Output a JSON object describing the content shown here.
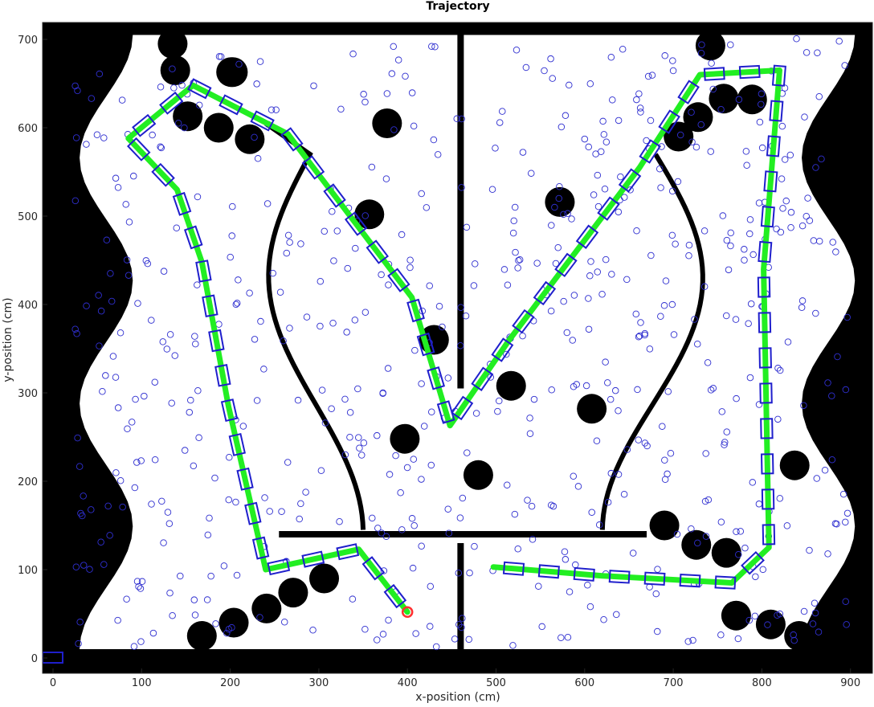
{
  "chart_data": {
    "type": "scatter",
    "title": "Trajectory",
    "xlabel": "x-position (cm)",
    "ylabel": "y-position (cm)",
    "xlim": [
      -12,
      925
    ],
    "ylim": [
      -10,
      715
    ],
    "xticks": [
      0,
      100,
      200,
      300,
      400,
      500,
      600,
      700,
      800,
      900
    ],
    "yticks": [
      0,
      100,
      200,
      300,
      400,
      500,
      600,
      700
    ],
    "grid": false,
    "colors": {
      "obstacle": "#000000",
      "trajectory": "#22ee22",
      "pose_box": "#1f1fcc",
      "particles": "#2f2fd0",
      "start_marker": "#ff3030"
    },
    "walls": [
      {
        "name": "center-vertical-upper",
        "points": [
          [
            460,
            705
          ],
          [
            460,
            305
          ]
        ]
      },
      {
        "name": "center-vertical-lower",
        "points": [
          [
            460,
            130
          ],
          [
            460,
            10
          ]
        ]
      },
      {
        "name": "center-horizontal",
        "points": [
          [
            255,
            140
          ],
          [
            670,
            140
          ]
        ]
      }
    ],
    "obstacles": [
      [
        135,
        695
      ],
      [
        138,
        665
      ],
      [
        203,
        663
      ],
      [
        152,
        613
      ],
      [
        187,
        600
      ],
      [
        222,
        587
      ],
      [
        377,
        605
      ],
      [
        357,
        502
      ],
      [
        430,
        360
      ],
      [
        397,
        248
      ],
      [
        480,
        207
      ],
      [
        517,
        308
      ],
      [
        572,
        516
      ],
      [
        608,
        282
      ],
      [
        706,
        590
      ],
      [
        728,
        612
      ],
      [
        757,
        633
      ],
      [
        789,
        632
      ],
      [
        742,
        693
      ],
      [
        837,
        218
      ],
      [
        690,
        150
      ],
      [
        726,
        128
      ],
      [
        760,
        119
      ],
      [
        771,
        48
      ],
      [
        810,
        38
      ],
      [
        842,
        25
      ],
      [
        201,
        663
      ],
      [
        168,
        25
      ],
      [
        204,
        40
      ],
      [
        241,
        56
      ],
      [
        271,
        74
      ],
      [
        306,
        90
      ]
    ],
    "trajectory": [
      [
        400,
        52
      ],
      [
        345,
        123
      ],
      [
        240,
        100
      ],
      [
        198,
        285
      ],
      [
        168,
        448
      ],
      [
        140,
        530
      ],
      [
        85,
        588
      ],
      [
        158,
        648
      ],
      [
        265,
        593
      ],
      [
        405,
        408
      ],
      [
        448,
        263
      ],
      [
        515,
        360
      ],
      [
        662,
        555
      ],
      [
        730,
        660
      ],
      [
        820,
        665
      ],
      [
        802,
        440
      ],
      [
        808,
        125
      ],
      [
        766,
        85
      ],
      [
        620,
        93
      ],
      [
        497,
        103
      ]
    ],
    "start": [
      400,
      52
    ]
  }
}
